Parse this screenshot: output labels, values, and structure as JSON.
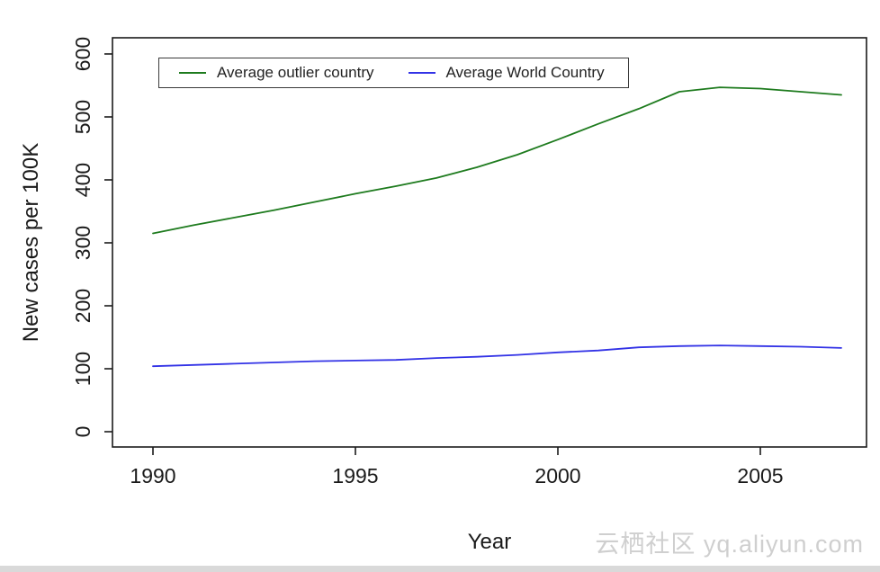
{
  "chart_data": {
    "type": "line",
    "title": "",
    "xlabel": "Year",
    "ylabel": "New cases per 100K",
    "x": [
      1990,
      1991,
      1992,
      1993,
      1994,
      1995,
      1996,
      1997,
      1998,
      1999,
      2000,
      2001,
      2002,
      2003,
      2004,
      2005,
      2006,
      2007
    ],
    "series": [
      {
        "name": "Average outlier country",
        "color": "#1e7b1e",
        "values": [
          315,
          328,
          340,
          352,
          365,
          378,
          390,
          403,
          420,
          440,
          464,
          489,
          513,
          540,
          547,
          545,
          540,
          535
        ]
      },
      {
        "name": "Average World Country",
        "color": "#3333e6",
        "values": [
          104,
          106,
          108,
          110,
          112,
          113,
          114,
          117,
          119,
          122,
          126,
          129,
          134,
          136,
          137,
          136,
          135,
          133
        ]
      }
    ],
    "x_ticks": [
      1990,
      1995,
      2000,
      2005
    ],
    "y_ticks": [
      0,
      100,
      200,
      300,
      400,
      500,
      600
    ],
    "xlim": [
      1989.0,
      2007.6
    ],
    "ylim": [
      0,
      600
    ],
    "grid": "off",
    "legend_position": "top-left-inside"
  },
  "axis_color": "#1a1a1a",
  "watermark": {
    "text": "云栖社区 yq.aliyun.com"
  }
}
